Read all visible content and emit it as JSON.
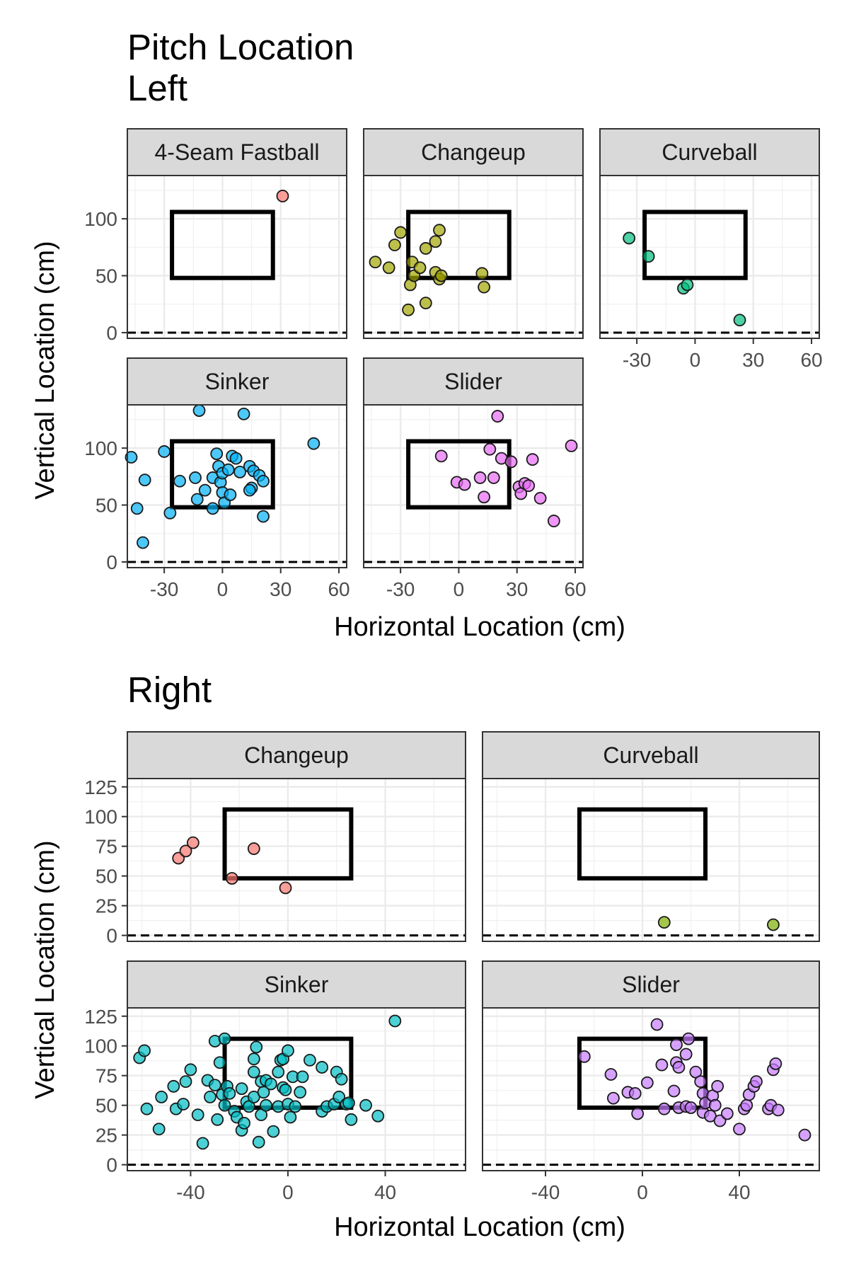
{
  "title_line1": "Pitch Location",
  "chart_data": [
    {
      "type": "scatter",
      "title": "Left",
      "xlabel": "Horizontal Location (cm)",
      "ylabel": "Vertical Location (cm)",
      "xlim": [
        -49,
        64
      ],
      "ylim": [
        -5,
        138
      ],
      "xticks": [
        -30,
        0,
        30,
        60
      ],
      "yticks": [
        0,
        50,
        100
      ],
      "strike_zone": {
        "x": [
          -26,
          26
        ],
        "y": [
          48,
          106
        ]
      },
      "ground_line_y": 0,
      "grid": true,
      "legend": "none",
      "facets": [
        {
          "label": "4-Seam Fastball",
          "color": "#F8766D",
          "points": [
            [
              31,
              120
            ]
          ]
        },
        {
          "label": "Changeup",
          "color": "#A3A500",
          "points": [
            [
              -43,
              62
            ],
            [
              -36,
              57
            ],
            [
              -33,
              77
            ],
            [
              -30,
              88
            ],
            [
              -25,
              42
            ],
            [
              -26,
              20
            ],
            [
              -24,
              62
            ],
            [
              -23,
              50
            ],
            [
              -20,
              57
            ],
            [
              -17,
              26
            ],
            [
              -17,
              74
            ],
            [
              -12,
              80
            ],
            [
              -10,
              90
            ],
            [
              -12,
              53
            ],
            [
              -10,
              47
            ],
            [
              -9,
              50
            ],
            [
              12,
              52
            ],
            [
              13,
              40
            ]
          ]
        },
        {
          "label": "Curveball",
          "color": "#00BF7D",
          "points": [
            [
              -34,
              83
            ],
            [
              -24,
              67
            ],
            [
              -6,
              39
            ],
            [
              -4,
              42
            ],
            [
              23,
              11
            ]
          ]
        },
        {
          "label": "Sinker",
          "color": "#00B0F6",
          "points": [
            [
              -47,
              92
            ],
            [
              -44,
              47
            ],
            [
              -41,
              17
            ],
            [
              -40,
              72
            ],
            [
              -30,
              97
            ],
            [
              -27,
              43
            ],
            [
              -22,
              71
            ],
            [
              -14,
              74
            ],
            [
              -13,
              55
            ],
            [
              -12,
              133
            ],
            [
              -9,
              63
            ],
            [
              -5,
              47
            ],
            [
              -5,
              74
            ],
            [
              -3,
              95
            ],
            [
              -2,
              84
            ],
            [
              -1,
              70
            ],
            [
              0,
              61
            ],
            [
              0,
              78
            ],
            [
              1,
              52
            ],
            [
              3,
              81
            ],
            [
              4,
              59
            ],
            [
              5,
              93
            ],
            [
              7,
              91
            ],
            [
              9,
              79
            ],
            [
              11,
              130
            ],
            [
              14,
              84
            ],
            [
              15,
              65
            ],
            [
              14,
              63
            ],
            [
              16,
              80
            ],
            [
              19,
              76
            ],
            [
              21,
              71
            ],
            [
              21,
              40
            ],
            [
              47,
              104
            ]
          ]
        },
        {
          "label": "Slider",
          "color": "#E76BF3",
          "points": [
            [
              -9,
              93
            ],
            [
              -1,
              70
            ],
            [
              3,
              68
            ],
            [
              11,
              74
            ],
            [
              13,
              57
            ],
            [
              16,
              99
            ],
            [
              18,
              74
            ],
            [
              20,
              128
            ],
            [
              22,
              91
            ],
            [
              27,
              88
            ],
            [
              31,
              66
            ],
            [
              32,
              60
            ],
            [
              34,
              69
            ],
            [
              36,
              67
            ],
            [
              38,
              90
            ],
            [
              42,
              56
            ],
            [
              49,
              36
            ],
            [
              58,
              102
            ]
          ]
        }
      ]
    },
    {
      "type": "scatter",
      "title": "Right",
      "xlabel": "Horizontal Location (cm)",
      "ylabel": "Vertical Location (cm)",
      "xlim": [
        -66,
        73
      ],
      "ylim": [
        -5,
        132
      ],
      "xticks": [
        -40,
        0,
        40
      ],
      "yticks": [
        0,
        25,
        50,
        75,
        100,
        125
      ],
      "strike_zone": {
        "x": [
          -26,
          26
        ],
        "y": [
          48,
          106
        ]
      },
      "ground_line_y": 0,
      "grid": true,
      "legend": "none",
      "facets": [
        {
          "label": "Changeup",
          "color": "#F8766D",
          "points": [
            [
              -45,
              65
            ],
            [
              -42,
              71
            ],
            [
              -39,
              78
            ],
            [
              -14,
              73
            ],
            [
              -23,
              48
            ],
            [
              -1,
              40
            ]
          ]
        },
        {
          "label": "Curveball",
          "color": "#7CAE00",
          "points": [
            [
              9,
              11
            ],
            [
              54,
              9
            ]
          ]
        },
        {
          "label": "Sinker",
          "color": "#00BFC4",
          "points": [
            [
              -61,
              90
            ],
            [
              -59,
              96
            ],
            [
              -58,
              47
            ],
            [
              -53,
              30
            ],
            [
              -52,
              57
            ],
            [
              -47,
              66
            ],
            [
              -46,
              47
            ],
            [
              -43,
              51
            ],
            [
              -42,
              70
            ],
            [
              -40,
              80
            ],
            [
              -37,
              42
            ],
            [
              -35,
              18
            ],
            [
              -33,
              71
            ],
            [
              -32,
              57
            ],
            [
              -30,
              67
            ],
            [
              -30,
              104
            ],
            [
              -29,
              38
            ],
            [
              -28,
              86
            ],
            [
              -27,
              59
            ],
            [
              -26,
              50
            ],
            [
              -25,
              66
            ],
            [
              -26,
              106
            ],
            [
              -24,
              60
            ],
            [
              -22,
              45
            ],
            [
              -21,
              40
            ],
            [
              -19,
              64
            ],
            [
              -19,
              29
            ],
            [
              -18,
              35
            ],
            [
              -17,
              53
            ],
            [
              -16,
              49
            ],
            [
              -14,
              57
            ],
            [
              -14,
              78
            ],
            [
              -14,
              89
            ],
            [
              -13,
              99
            ],
            [
              -12,
              19
            ],
            [
              -11,
              42
            ],
            [
              -11,
              70
            ],
            [
              -10,
              61
            ],
            [
              -9,
              71
            ],
            [
              -9,
              50
            ],
            [
              -7,
              68
            ],
            [
              -6,
              28
            ],
            [
              -4,
              78
            ],
            [
              -4,
              49
            ],
            [
              -3,
              88
            ],
            [
              -2,
              65
            ],
            [
              -2,
              89
            ],
            [
              -1,
              63
            ],
            [
              0,
              96
            ],
            [
              0,
              51
            ],
            [
              1,
              40
            ],
            [
              2,
              74
            ],
            [
              3,
              49
            ],
            [
              5,
              61
            ],
            [
              6,
              74
            ],
            [
              9,
              88
            ],
            [
              14,
              82
            ],
            [
              14,
              45
            ],
            [
              16,
              49
            ],
            [
              19,
              51
            ],
            [
              20,
              78
            ],
            [
              21,
              57
            ],
            [
              22,
              72
            ],
            [
              24,
              51
            ],
            [
              25,
              52
            ],
            [
              26,
              38
            ],
            [
              32,
              50
            ],
            [
              37,
              41
            ],
            [
              44,
              121
            ]
          ]
        },
        {
          "label": "Slider",
          "color": "#C77CFF",
          "points": [
            [
              -24,
              91
            ],
            [
              -13,
              76
            ],
            [
              -12,
              56
            ],
            [
              -6,
              61
            ],
            [
              -3,
              60
            ],
            [
              -2,
              43
            ],
            [
              2,
              69
            ],
            [
              6,
              118
            ],
            [
              8,
              84
            ],
            [
              9,
              47
            ],
            [
              13,
              62
            ],
            [
              14,
              101
            ],
            [
              14,
              86
            ],
            [
              15,
              82
            ],
            [
              15,
              48
            ],
            [
              18,
              93
            ],
            [
              18,
              49
            ],
            [
              19,
              106
            ],
            [
              20,
              48
            ],
            [
              22,
              78
            ],
            [
              24,
              70
            ],
            [
              25,
              60
            ],
            [
              25,
              44
            ],
            [
              26,
              52
            ],
            [
              28,
              41
            ],
            [
              29,
              58
            ],
            [
              30,
              50
            ],
            [
              31,
              66
            ],
            [
              32,
              37
            ],
            [
              35,
              43
            ],
            [
              40,
              30
            ],
            [
              42,
              47
            ],
            [
              43,
              50
            ],
            [
              44,
              59
            ],
            [
              46,
              66
            ],
            [
              47,
              70
            ],
            [
              52,
              47
            ],
            [
              53,
              50
            ],
            [
              54,
              80
            ],
            [
              55,
              85
            ],
            [
              56,
              46
            ],
            [
              67,
              25
            ]
          ]
        }
      ]
    }
  ]
}
